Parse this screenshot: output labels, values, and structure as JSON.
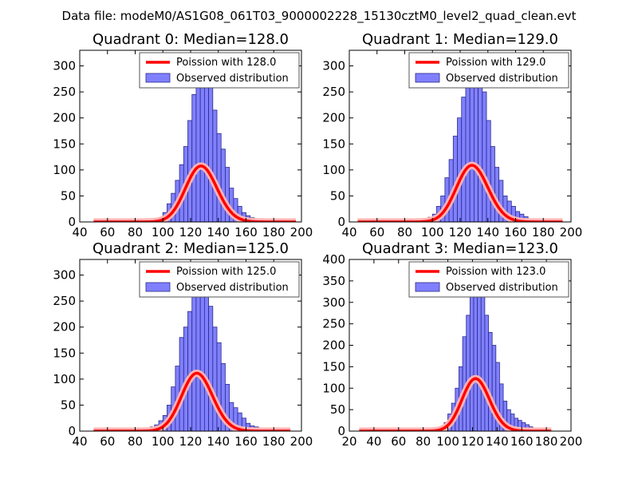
{
  "figure_title": "Data file: modeM0/AS1G08_061T03_9000002228_15130cztM0_level2_quad_clean.evt",
  "colors": {
    "bar_fill": "#8080ff",
    "bar_edge": "#2a2a8c",
    "poisson_line": "#ff0000",
    "poisson_overlay": "#ffb3b3",
    "axis": "#000000",
    "legend_edge": "#555555"
  },
  "chart_data": [
    {
      "type": "bar",
      "title": "Quadrant 0: Median=128.0",
      "median": 128,
      "xlim": [
        40,
        200
      ],
      "ylim": [
        0,
        330
      ],
      "xticks": [
        40,
        60,
        80,
        100,
        120,
        140,
        160,
        180,
        200
      ],
      "yticks": [
        0,
        50,
        100,
        150,
        200,
        250,
        300
      ],
      "legend": [
        "Poission with 128.0",
        "Observed distribution"
      ],
      "legend_position": "top-right",
      "series": [
        {
          "name": "Observed distribution",
          "kind": "histogram",
          "bin_width": 3,
          "bins": [
            [
              88,
              1
            ],
            [
              91,
              4
            ],
            [
              94,
              6
            ],
            [
              97,
              8
            ],
            [
              100,
              18
            ],
            [
              103,
              35
            ],
            [
              106,
              55
            ],
            [
              109,
              80
            ],
            [
              112,
              110
            ],
            [
              115,
              145
            ],
            [
              118,
              195
            ],
            [
              121,
              245
            ],
            [
              124,
              300
            ],
            [
              127,
              312
            ],
            [
              130,
              305
            ],
            [
              133,
              270
            ],
            [
              136,
              215
            ],
            [
              139,
              170
            ],
            [
              142,
              140
            ],
            [
              145,
              105
            ],
            [
              148,
              65
            ],
            [
              151,
              45
            ],
            [
              154,
              30
            ],
            [
              157,
              18
            ],
            [
              160,
              12
            ],
            [
              163,
              8
            ],
            [
              166,
              5
            ],
            [
              169,
              3
            ],
            [
              172,
              2
            ],
            [
              175,
              2
            ],
            [
              178,
              1
            ]
          ]
        },
        {
          "name": "Poission with 128.0",
          "kind": "poisson",
          "mean": 128,
          "scale": 3050,
          "x_range": [
            50,
            196
          ]
        }
      ]
    },
    {
      "type": "bar",
      "title": "Quadrant 1: Median=129.0",
      "median": 129,
      "xlim": [
        40,
        200
      ],
      "ylim": [
        0,
        330
      ],
      "xticks": [
        40,
        60,
        80,
        100,
        120,
        140,
        160,
        180,
        200
      ],
      "yticks": [
        0,
        50,
        100,
        150,
        200,
        250,
        300
      ],
      "legend": [
        "Poission with 129.0",
        "Observed distribution"
      ],
      "legend_position": "top-right",
      "series": [
        {
          "name": "Observed distribution",
          "kind": "histogram",
          "bin_width": 3,
          "bins": [
            [
              79,
              3
            ],
            [
              82,
              1
            ],
            [
              85,
              1
            ],
            [
              88,
              2
            ],
            [
              91,
              3
            ],
            [
              94,
              5
            ],
            [
              97,
              9
            ],
            [
              100,
              15
            ],
            [
              103,
              30
            ],
            [
              106,
              50
            ],
            [
              109,
              85
            ],
            [
              112,
              120
            ],
            [
              115,
              165
            ],
            [
              118,
              200
            ],
            [
              121,
              240
            ],
            [
              124,
              280
            ],
            [
              127,
              300
            ],
            [
              130,
              320
            ],
            [
              133,
              295
            ],
            [
              136,
              250
            ],
            [
              139,
              195
            ],
            [
              142,
              145
            ],
            [
              145,
              105
            ],
            [
              148,
              80
            ],
            [
              151,
              50
            ],
            [
              154,
              40
            ],
            [
              157,
              30
            ],
            [
              160,
              20
            ],
            [
              163,
              15
            ],
            [
              166,
              10
            ],
            [
              169,
              6
            ],
            [
              172,
              4
            ],
            [
              175,
              2
            ],
            [
              178,
              1
            ]
          ]
        },
        {
          "name": "Poission with 129.0",
          "kind": "poisson",
          "mean": 129,
          "scale": 3100,
          "x_range": [
            46,
            194
          ]
        }
      ]
    },
    {
      "type": "bar",
      "title": "Quadrant 2: Median=125.0",
      "median": 125,
      "xlim": [
        40,
        200
      ],
      "ylim": [
        0,
        330
      ],
      "xticks": [
        40,
        60,
        80,
        100,
        120,
        140,
        160,
        180,
        200
      ],
      "yticks": [
        0,
        50,
        100,
        150,
        200,
        250,
        300
      ],
      "legend": [
        "Poission with 125.0",
        "Observed distribution"
      ],
      "legend_position": "top-right",
      "series": [
        {
          "name": "Observed distribution",
          "kind": "histogram",
          "bin_width": 3,
          "bins": [
            [
              64,
              1
            ],
            [
              67,
              2
            ],
            [
              70,
              1
            ],
            [
              73,
              3
            ],
            [
              76,
              1
            ],
            [
              79,
              2
            ],
            [
              82,
              1
            ],
            [
              85,
              4
            ],
            [
              88,
              5
            ],
            [
              91,
              8
            ],
            [
              94,
              12
            ],
            [
              97,
              20
            ],
            [
              100,
              30
            ],
            [
              103,
              50
            ],
            [
              106,
              85
            ],
            [
              109,
              125
            ],
            [
              112,
              180
            ],
            [
              115,
              200
            ],
            [
              118,
              230
            ],
            [
              121,
              270
            ],
            [
              124,
              300
            ],
            [
              127,
              310
            ],
            [
              130,
              280
            ],
            [
              133,
              240
            ],
            [
              136,
              200
            ],
            [
              139,
              170
            ],
            [
              142,
              130
            ],
            [
              145,
              90
            ],
            [
              148,
              55
            ],
            [
              151,
              45
            ],
            [
              154,
              35
            ],
            [
              157,
              25
            ],
            [
              160,
              15
            ],
            [
              163,
              10
            ],
            [
              166,
              8
            ],
            [
              169,
              5
            ],
            [
              172,
              3
            ],
            [
              175,
              2
            ],
            [
              178,
              1
            ]
          ]
        },
        {
          "name": "Poission with 125.0",
          "kind": "poisson",
          "mean": 125,
          "scale": 3120,
          "x_range": [
            50,
            192
          ]
        }
      ]
    },
    {
      "type": "bar",
      "title": "Quadrant 3: Median=123.0",
      "median": 123,
      "xlim": [
        20,
        200
      ],
      "ylim": [
        0,
        400
      ],
      "xticks": [
        20,
        40,
        60,
        80,
        100,
        120,
        140,
        160,
        180,
        200
      ],
      "yticks": [
        0,
        50,
        100,
        150,
        200,
        250,
        300,
        350,
        400
      ],
      "legend": [
        "Poission with 123.0",
        "Observed distribution"
      ],
      "legend_position": "top-right",
      "series": [
        {
          "name": "Observed distribution",
          "kind": "histogram",
          "bin_width": 3,
          "bins": [
            [
              67,
              1
            ],
            [
              70,
              2
            ],
            [
              73,
              3
            ],
            [
              76,
              1
            ],
            [
              79,
              2
            ],
            [
              82,
              1
            ],
            [
              85,
              2
            ],
            [
              88,
              3
            ],
            [
              91,
              5
            ],
            [
              94,
              8
            ],
            [
              97,
              20
            ],
            [
              100,
              40
            ],
            [
              103,
              65
            ],
            [
              106,
              100
            ],
            [
              109,
              150
            ],
            [
              112,
              220
            ],
            [
              115,
              270
            ],
            [
              118,
              340
            ],
            [
              121,
              365
            ],
            [
              124,
              350
            ],
            [
              127,
              320
            ],
            [
              130,
              270
            ],
            [
              133,
              230
            ],
            [
              136,
              200
            ],
            [
              139,
              160
            ],
            [
              142,
              110
            ],
            [
              145,
              70
            ],
            [
              148,
              50
            ],
            [
              151,
              40
            ],
            [
              154,
              30
            ],
            [
              157,
              25
            ],
            [
              160,
              20
            ],
            [
              163,
              15
            ],
            [
              166,
              10
            ],
            [
              169,
              7
            ],
            [
              172,
              4
            ],
            [
              175,
              2
            ],
            [
              178,
              1
            ]
          ]
        },
        {
          "name": "Poission with 123.0",
          "kind": "poisson",
          "mean": 123,
          "scale": 3400,
          "x_range": [
            28,
            184
          ]
        }
      ]
    }
  ]
}
